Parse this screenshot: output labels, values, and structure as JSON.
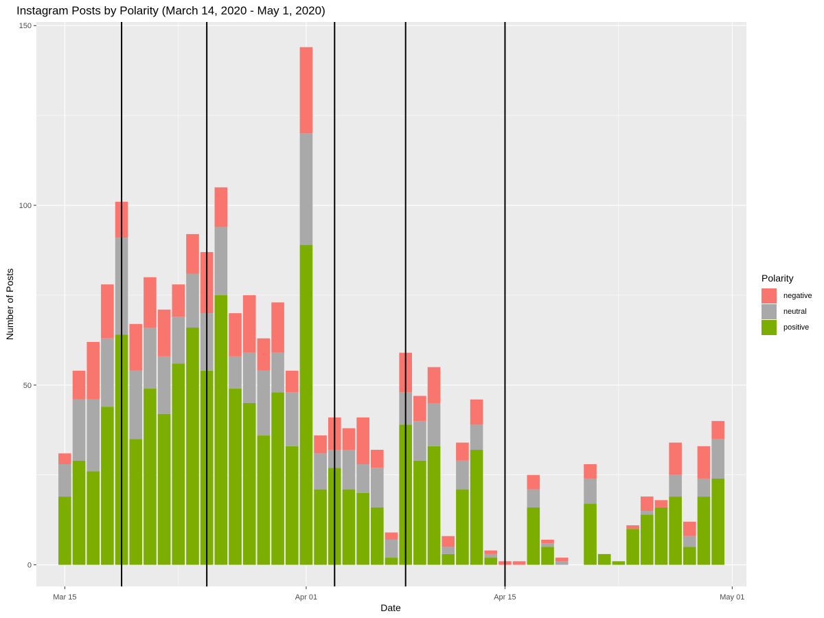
{
  "chart_data": {
    "type": "bar",
    "stacked": true,
    "title": "Instagram Posts by Polarity (March 14, 2020 - May 1, 2020)",
    "xlabel": "Date",
    "ylabel": "Number of Posts",
    "ylim": [
      -6,
      151
    ],
    "xlim": [
      "2020-03-13",
      "2020-05-02"
    ],
    "y_ticks": [
      0,
      50,
      100,
      150
    ],
    "x_ticks": [
      {
        "date": "2020-03-15",
        "label": "Mar 15"
      },
      {
        "date": "2020-04-01",
        "label": "Apr 01"
      },
      {
        "date": "2020-04-15",
        "label": "Apr 15"
      },
      {
        "date": "2020-05-01",
        "label": "May 01"
      }
    ],
    "grid": true,
    "legend": {
      "title": "Polarity",
      "position": "right",
      "entries": [
        "negative",
        "neutral",
        "positive"
      ]
    },
    "colors": {
      "negative": "#F8766D",
      "neutral": "#A9A9A9",
      "positive": "#7CAE00"
    },
    "vlines": [
      "2020-03-19",
      "2020-03-25",
      "2020-04-03",
      "2020-04-08",
      "2020-04-15"
    ],
    "dates": [
      "2020-03-15",
      "2020-03-16",
      "2020-03-17",
      "2020-03-18",
      "2020-03-19",
      "2020-03-20",
      "2020-03-21",
      "2020-03-22",
      "2020-03-23",
      "2020-03-24",
      "2020-03-25",
      "2020-03-26",
      "2020-03-27",
      "2020-03-28",
      "2020-03-29",
      "2020-03-30",
      "2020-03-31",
      "2020-04-01",
      "2020-04-02",
      "2020-04-03",
      "2020-04-04",
      "2020-04-05",
      "2020-04-06",
      "2020-04-07",
      "2020-04-08",
      "2020-04-09",
      "2020-04-10",
      "2020-04-11",
      "2020-04-12",
      "2020-04-13",
      "2020-04-14",
      "2020-04-15",
      "2020-04-16",
      "2020-04-17",
      "2020-04-18",
      "2020-04-19",
      "2020-04-20",
      "2020-04-21",
      "2020-04-22",
      "2020-04-23",
      "2020-04-24",
      "2020-04-25",
      "2020-04-26",
      "2020-04-27",
      "2020-04-28",
      "2020-04-29",
      "2020-04-30"
    ],
    "series": [
      {
        "name": "positive",
        "values": [
          19,
          29,
          26,
          44,
          64,
          35,
          49,
          42,
          56,
          66,
          54,
          75,
          49,
          45,
          36,
          48,
          33,
          89,
          21,
          27,
          21,
          20,
          16,
          2,
          39,
          29,
          33,
          3,
          21,
          32,
          2,
          0,
          0,
          16,
          5,
          0,
          0,
          17,
          3,
          1,
          10,
          14,
          16,
          19,
          5,
          19,
          24
        ]
      },
      {
        "name": "neutral",
        "values": [
          9,
          17,
          20,
          19,
          27,
          19,
          17,
          16,
          13,
          15,
          16,
          19,
          9,
          14,
          18,
          11,
          15,
          31,
          10,
          5,
          11,
          8,
          11,
          5,
          9,
          11,
          12,
          2,
          8,
          7,
          1,
          0,
          0,
          5,
          1,
          1,
          0,
          7,
          0,
          0,
          0,
          1,
          0,
          6,
          3,
          5,
          11
        ]
      },
      {
        "name": "negative",
        "values": [
          3,
          8,
          16,
          15,
          10,
          13,
          14,
          13,
          9,
          11,
          17,
          11,
          12,
          16,
          9,
          14,
          6,
          24,
          5,
          9,
          6,
          13,
          5,
          2,
          11,
          7,
          10,
          3,
          5,
          7,
          1,
          1,
          1,
          4,
          1,
          1,
          0,
          4,
          0,
          0,
          1,
          4,
          2,
          9,
          4,
          9,
          5
        ]
      }
    ]
  }
}
